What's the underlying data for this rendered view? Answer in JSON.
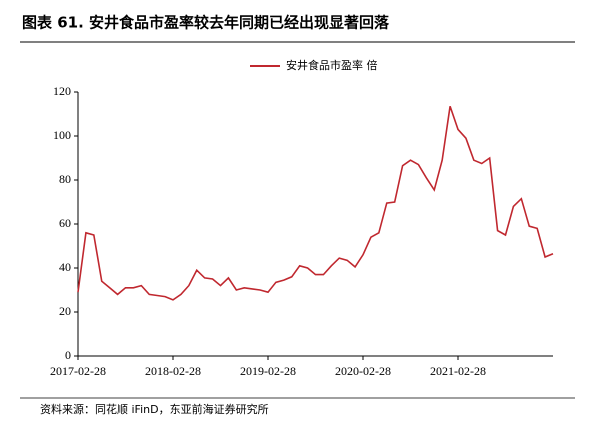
{
  "chart_data": {
    "type": "line",
    "title": "图表 61. 安井食品市盈率较去年同期已经出现显著回落",
    "source": "资料来源：同花顺 iFinD，东亚前海证券研究所",
    "categories": [
      "2017-02-28",
      null,
      null,
      null,
      null,
      null,
      null,
      null,
      null,
      null,
      null,
      null,
      "2018-02-28",
      null,
      null,
      null,
      null,
      null,
      null,
      null,
      null,
      null,
      null,
      null,
      "2019-02-28",
      null,
      null,
      null,
      null,
      null,
      null,
      null,
      null,
      null,
      null,
      null,
      "2020-02-28",
      null,
      null,
      null,
      null,
      null,
      null,
      null,
      null,
      null,
      null,
      null,
      "2021-02-28",
      null,
      null,
      null,
      null,
      null,
      null,
      null,
      null,
      null,
      null,
      null,
      null
    ],
    "series": [
      {
        "name": "安井食品市盈率 倍",
        "color": "#c0282f",
        "values": [
          29,
          56,
          55,
          34,
          31,
          28,
          31,
          31,
          32,
          28,
          27.5,
          27,
          25.5,
          28,
          32,
          39,
          35.5,
          35,
          32,
          35.5,
          30,
          31,
          30.5,
          30,
          29,
          33.5,
          34.5,
          36,
          41,
          40,
          37,
          37,
          41,
          44.5,
          43.5,
          40.5,
          46,
          54,
          56,
          69.5,
          70,
          86.5,
          89,
          87,
          81,
          75.5,
          89,
          113.5,
          103,
          99,
          89,
          87.5,
          90,
          57,
          55,
          68,
          71.5,
          59,
          58,
          45,
          46.5
        ]
      }
    ],
    "ylim": [
      0,
      120
    ],
    "yticks": [
      0,
      20,
      40,
      60,
      80,
      100,
      120
    ],
    "legend": "top"
  }
}
